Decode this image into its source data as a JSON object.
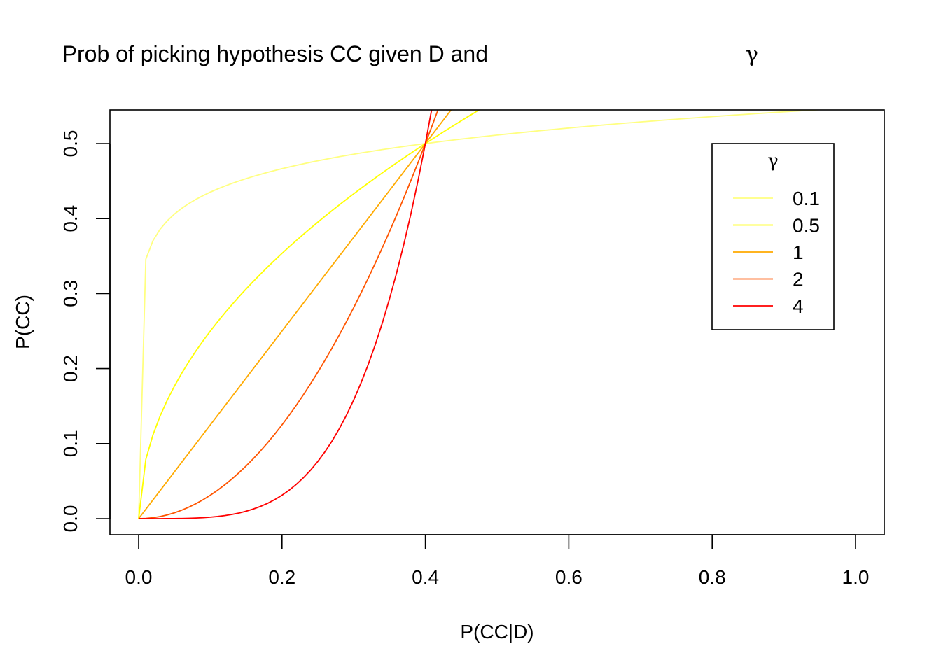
{
  "chart_data": {
    "type": "line",
    "title": "Prob of picking hypothesis CC given D and",
    "title_symbol": "γ",
    "xlabel": "P(CC|D)",
    "ylabel": "P(CC)",
    "xlim": [
      0.0,
      1.0
    ],
    "ylim": [
      0.0,
      0.5
    ],
    "x_ticks": [
      "0.0",
      "0.2",
      "0.4",
      "0.6",
      "0.8",
      "1.0"
    ],
    "y_ticks": [
      "0.0",
      "0.1",
      "0.2",
      "0.3",
      "0.4",
      "0.5"
    ],
    "grid": false,
    "legend": {
      "title": "γ",
      "placement": "top-right"
    },
    "series": [
      {
        "name": "0.1",
        "color": "#ffff80",
        "gamma": 0.1
      },
      {
        "name": "0.5",
        "color": "#ffff00",
        "gamma": 0.5
      },
      {
        "name": "1",
        "color": "#ffaa00",
        "gamma": 1
      },
      {
        "name": "2",
        "color": "#ff5500",
        "gamma": 2
      },
      {
        "name": "4",
        "color": "#ff0000",
        "gamma": 4
      }
    ],
    "curve_note": "y = 0.5 * (x/0.4)^gamma"
  }
}
